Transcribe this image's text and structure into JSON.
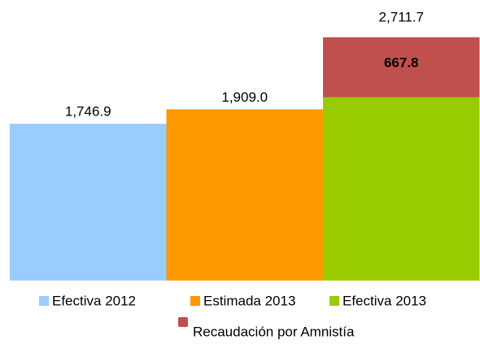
{
  "chart_data": {
    "type": "stacked_bar",
    "categories": [
      null,
      null,
      null
    ],
    "series": [
      {
        "name": "Efectiva 2012",
        "color": "#99ccff",
        "values": [
          1746.9,
          null,
          null
        ],
        "value_labels": [
          "1,746.9",
          null,
          null
        ]
      },
      {
        "name": "Estimada 2013",
        "color": "#ff9900",
        "values": [
          null,
          1909.0,
          null
        ],
        "value_labels": [
          null,
          "1,909.0",
          null
        ]
      },
      {
        "name": "Efectiva 2013",
        "color": "#99cc00",
        "values": [
          null,
          null,
          2043.9
        ]
      },
      {
        "name": "Recaudación por Amnistía",
        "color": "#c0504d",
        "values": [
          null,
          null,
          667.8
        ],
        "value_labels": [
          null,
          null,
          "667.8"
        ]
      }
    ],
    "totals": [
      null,
      null,
      2711.7
    ],
    "total_labels": [
      null,
      null,
      "2,711.7"
    ],
    "ylim": [
      0,
      3000
    ]
  }
}
